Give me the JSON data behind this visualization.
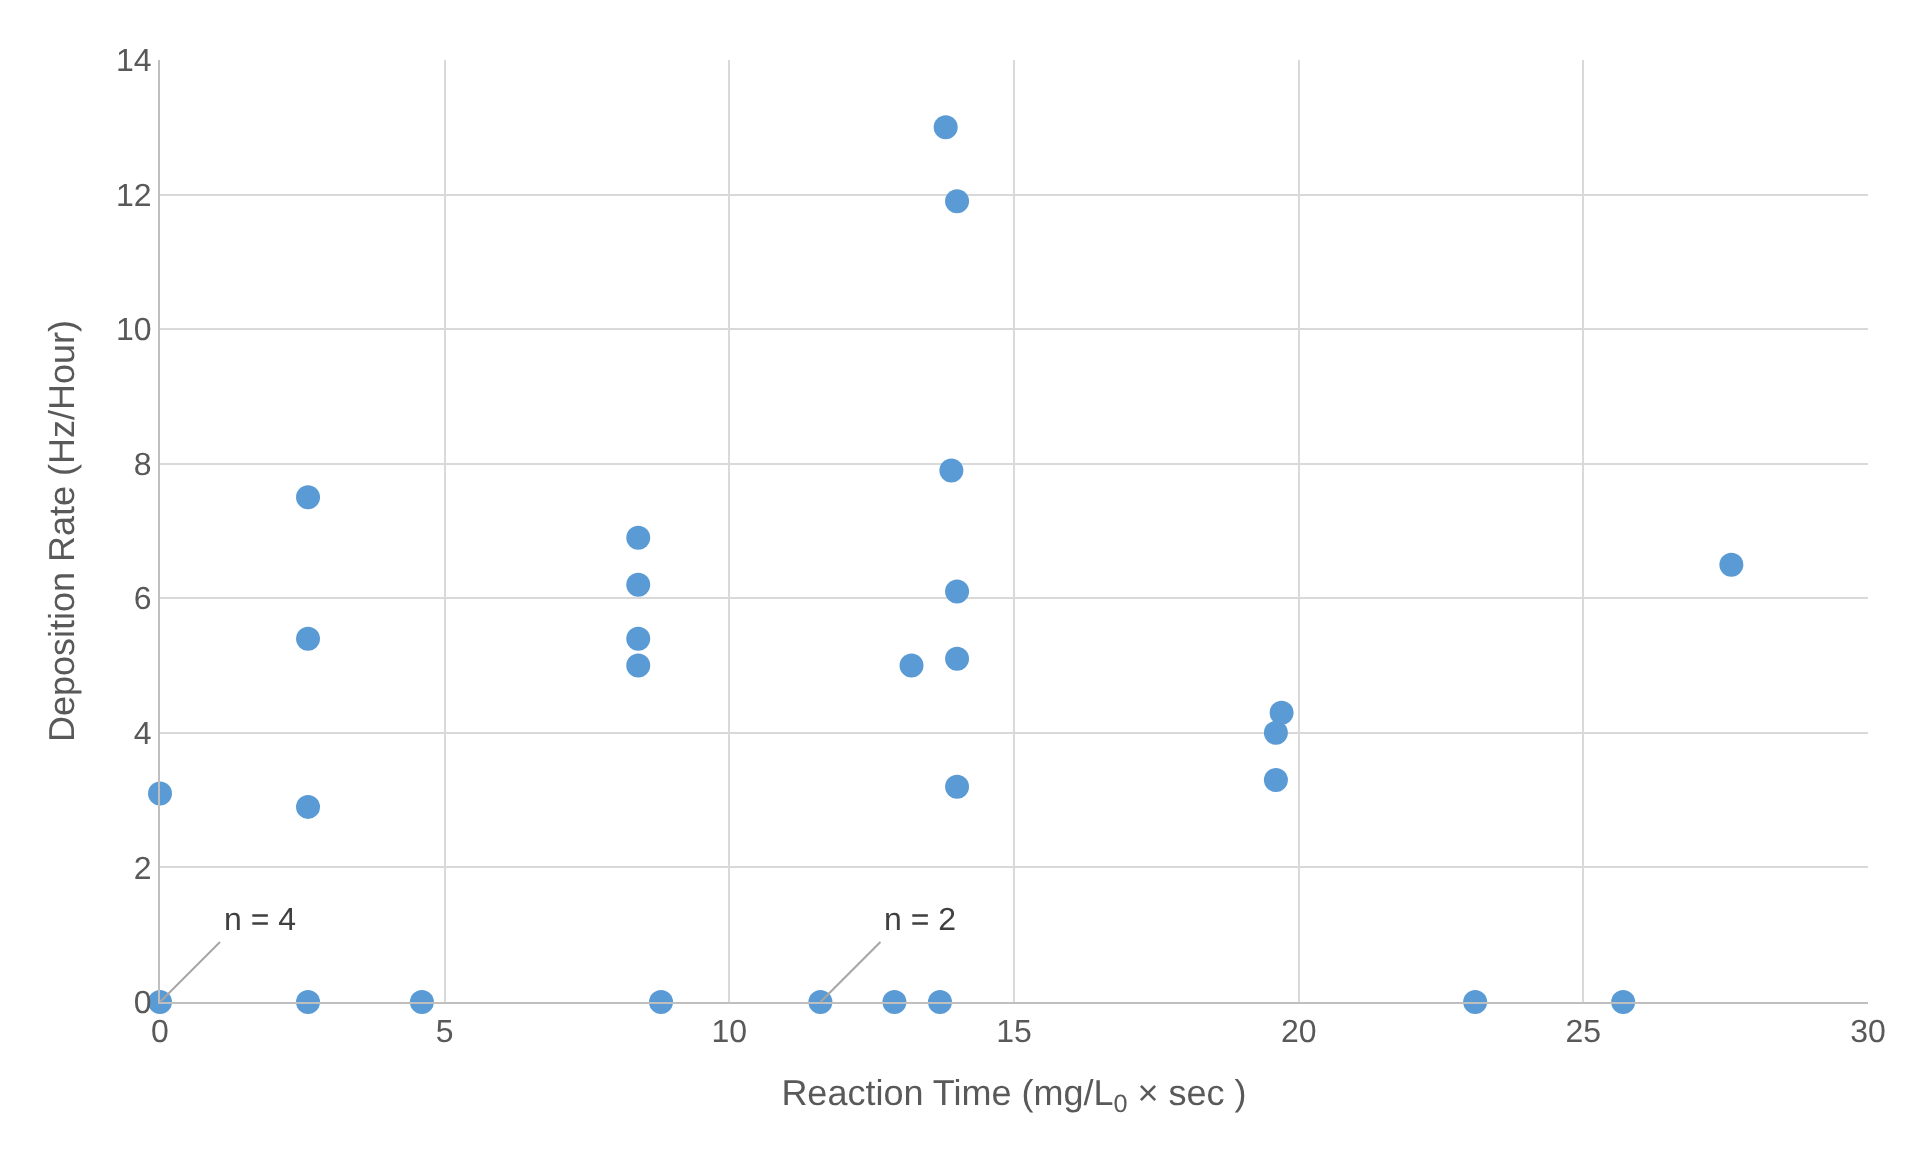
{
  "chart_data": {
    "type": "scatter",
    "xlabel": "Reaction Time (mg/L$_{0}$ × sec )",
    "ylabel": "Deposition Rate (Hz/Hour)",
    "x": [
      0,
      0,
      2.6,
      2.6,
      2.6,
      2.6,
      4.6,
      8.4,
      8.4,
      8.4,
      8.4,
      8.8,
      11.6,
      12.9,
      13.2,
      13.7,
      13.8,
      14.0,
      13.9,
      14.0,
      14.0,
      14.0,
      19.7,
      19.6,
      19.6,
      23.1,
      25.7,
      27.6
    ],
    "series": [
      {
        "color": "#5b9bd5",
        "values": [
          3.1,
          0,
          7.5,
          5.4,
          2.9,
          0,
          0,
          6.9,
          6.2,
          5.4,
          5.0,
          0,
          0,
          0,
          5.0,
          0,
          13.0,
          11.9,
          7.9,
          6.1,
          5.1,
          3.2,
          4.3,
          4.0,
          3.3,
          0,
          0,
          6.5
        ]
      }
    ],
    "xlim": [
      0,
      30
    ],
    "xticks": [
      0,
      5,
      10,
      15,
      20,
      25,
      30
    ],
    "ylim": [
      0,
      14
    ],
    "yticks": [
      0,
      2,
      4,
      6,
      8,
      10,
      12,
      14
    ],
    "grid": true,
    "marker": "circle",
    "annotations": [
      {
        "text": "n = 4",
        "x": 0,
        "y": 0
      },
      {
        "text": "n = 2",
        "x": 11.6,
        "y": 0
      }
    ]
  }
}
